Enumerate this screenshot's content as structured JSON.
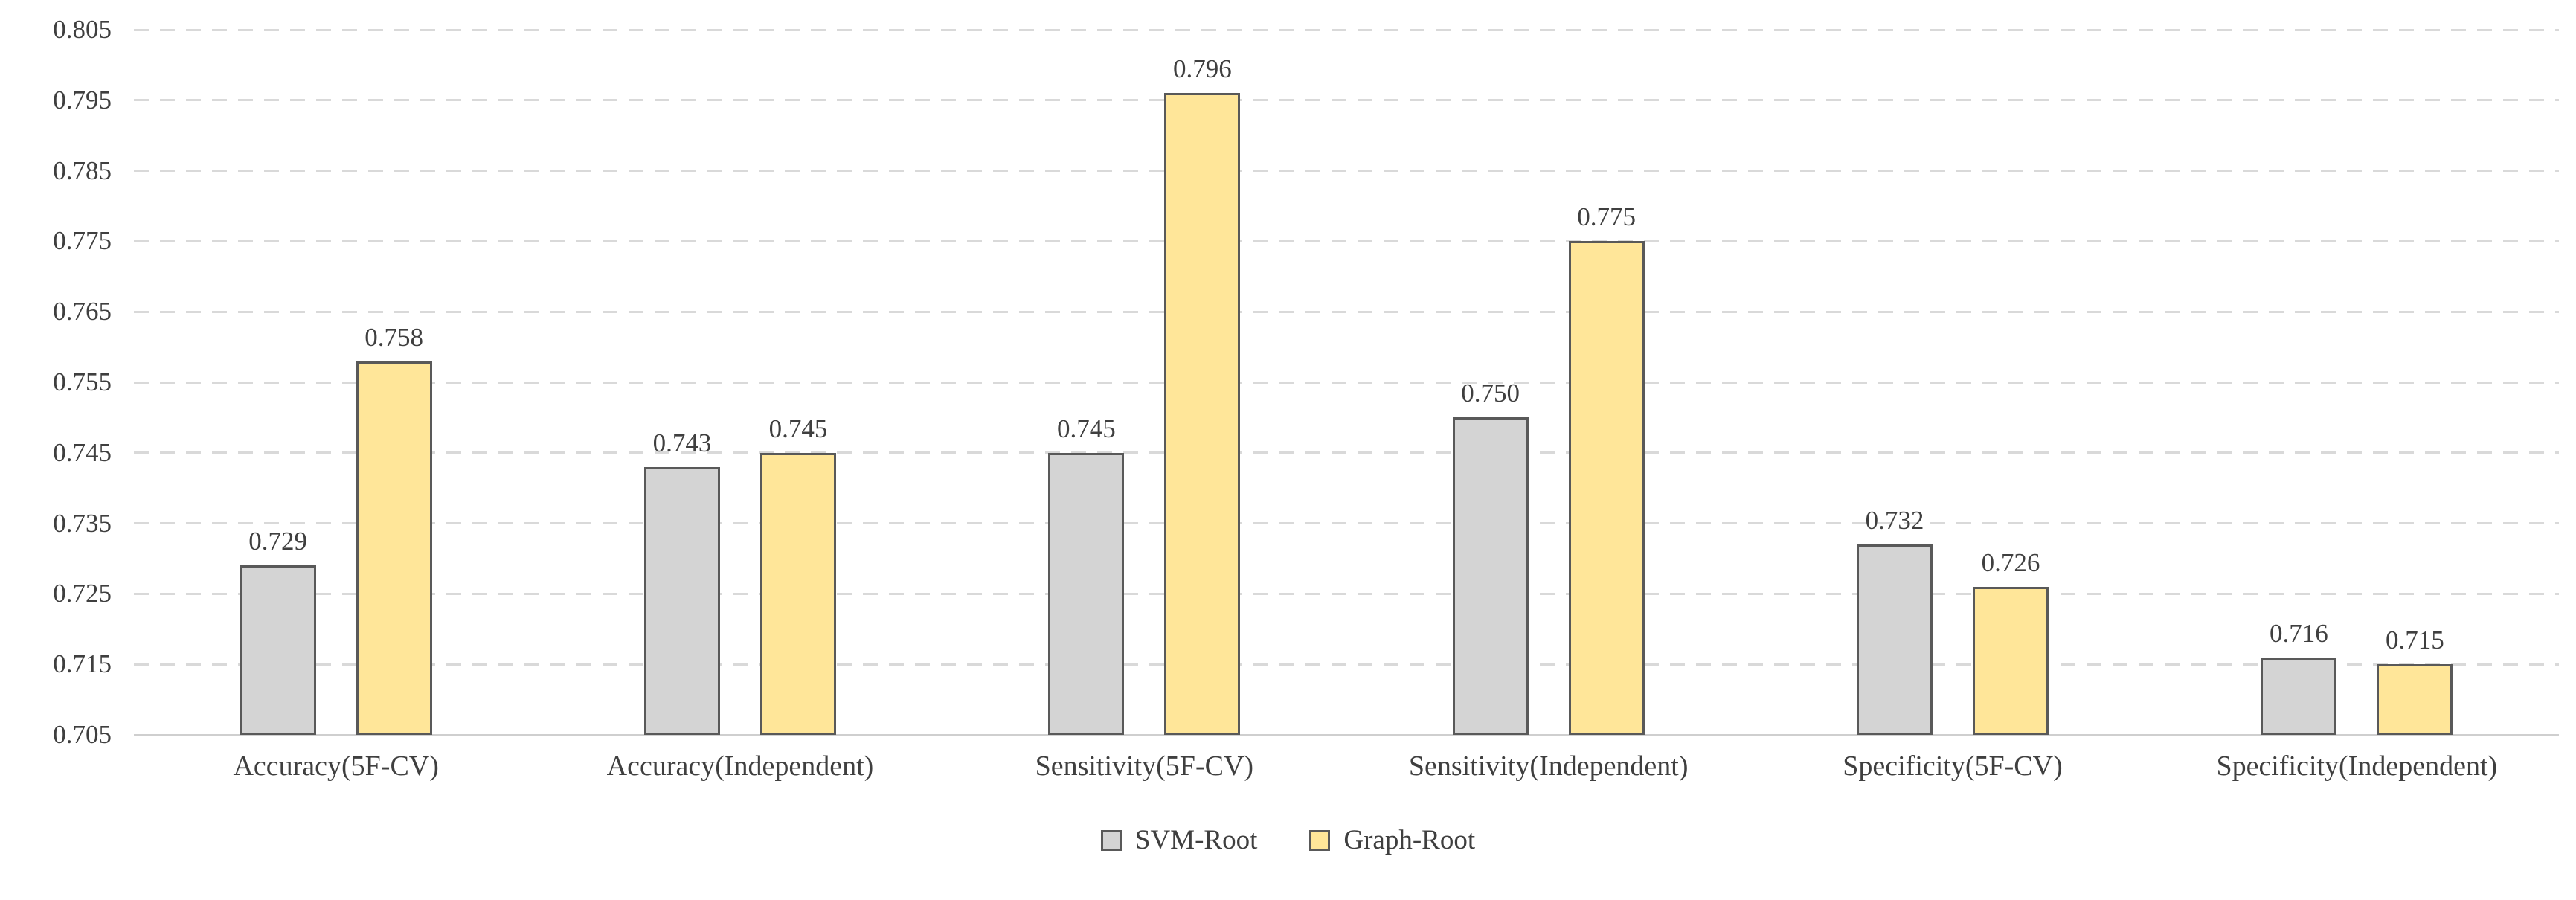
{
  "chart_data": {
    "type": "bar",
    "title": "",
    "xlabel": "",
    "ylabel": "",
    "categories": [
      "Accuracy(5F-CV)",
      "Accuracy(Independent)",
      "Sensitivity(5F-CV)",
      "Sensitivity(Independent)",
      "Specificity(5F-CV)",
      "Specificity(Independent)"
    ],
    "series": [
      {
        "name": "SVM-Root",
        "color": "#d4d4d4",
        "border_color": "#595959",
        "values": [
          0.729,
          0.743,
          0.745,
          0.75,
          0.732,
          0.716
        ],
        "labels": [
          "0.729",
          "0.743",
          "0.745",
          "0.750",
          "0.732",
          "0.716"
        ]
      },
      {
        "name": "Graph-Root",
        "color": "#ffe699",
        "border_color": "#595959",
        "values": [
          0.758,
          0.745,
          0.796,
          0.775,
          0.726,
          0.715
        ],
        "labels": [
          "0.758",
          "0.745",
          "0.796",
          "0.775",
          "0.726",
          "0.715"
        ]
      }
    ],
    "ylim": [
      0.705,
      0.805
    ],
    "ytick_values": [
      0.805,
      0.795,
      0.785,
      0.775,
      0.765,
      0.755,
      0.745,
      0.735,
      0.725,
      0.715,
      0.705
    ],
    "yticks": [
      "0.805",
      "0.795",
      "0.785",
      "0.775",
      "0.765",
      "0.755",
      "0.745",
      "0.735",
      "0.725",
      "0.715",
      "0.705"
    ],
    "grid": "horizontal-dashed",
    "gridline_color": "#d9d9d9",
    "axis_line_color": "#cfcfcf",
    "text_color": "#3f3f3f",
    "background": "#ffffff",
    "legend_position": "bottom"
  }
}
